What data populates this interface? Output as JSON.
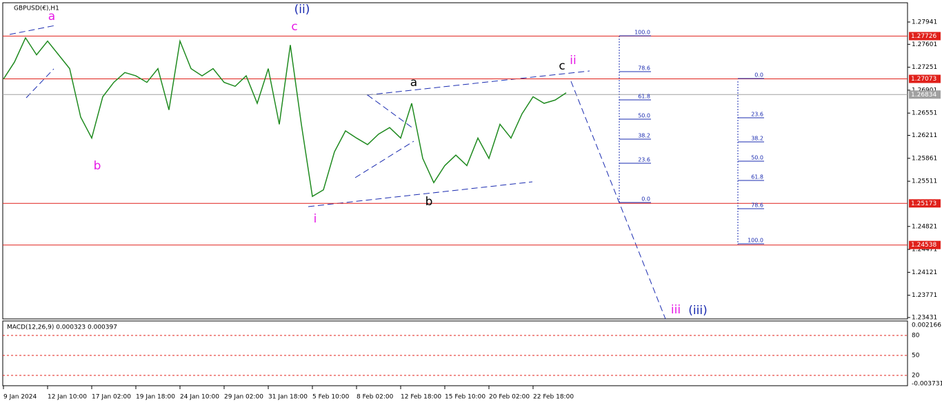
{
  "chart_data": {
    "type": "line",
    "title": "GBPUSD(€),H1",
    "categories": [
      "9 Jan 2024",
      null,
      null,
      null,
      "12 Jan 10:00",
      null,
      null,
      null,
      "17 Jan 02:00",
      null,
      null,
      null,
      "19 Jan 18:00",
      null,
      null,
      null,
      "24 Jan 10:00",
      null,
      null,
      null,
      "29 Jan 02:00",
      null,
      null,
      null,
      "31 Jan 18:00",
      null,
      null,
      null,
      "5 Feb 10:00",
      null,
      null,
      null,
      "8 Feb 02:00",
      null,
      null,
      null,
      "12 Feb 18:00",
      null,
      null,
      null,
      "15 Feb 10:00",
      null,
      null,
      null,
      "20 Feb 02:00",
      null,
      null,
      null,
      "22 Feb 18:00",
      null,
      null,
      null
    ],
    "series": [
      {
        "name": "GBPUSD",
        "color": "#1f8a1f",
        "values": [
          1.2707,
          1.2733,
          1.277,
          1.2744,
          1.2765,
          1.2744,
          1.2723,
          1.2649,
          1.2617,
          1.268,
          1.2702,
          1.2717,
          1.2712,
          1.2702,
          1.2723,
          1.266,
          1.2765,
          1.2723,
          1.2712,
          1.2723,
          1.2702,
          1.2696,
          1.2712,
          1.267,
          1.2723,
          1.2638,
          1.2759,
          1.2638,
          1.2528,
          1.2538,
          1.2596,
          1.2628,
          1.2617,
          1.2607,
          1.2623,
          1.2633,
          1.2617,
          1.267,
          1.2586,
          1.2549,
          1.2575,
          1.2591,
          1.2575,
          1.2617,
          1.2586,
          1.2638,
          1.2617,
          1.2654,
          1.268,
          1.267,
          1.2675,
          1.2686
        ]
      }
    ],
    "ylim": [
      1.2341,
      1.28235
    ],
    "yticks": [
      1.27941,
      1.27601,
      1.27251,
      1.26901,
      1.26551,
      1.26211,
      1.25861,
      1.25511,
      1.24821,
      1.24471,
      1.24121,
      1.23771,
      1.23431
    ],
    "hlines": [
      {
        "value": 1.27726,
        "color": "#e0201a"
      },
      {
        "value": 1.27073,
        "color": "#e0201a"
      },
      {
        "value": 1.26834,
        "color": "#a0a0a0"
      },
      {
        "value": 1.25173,
        "color": "#e0201a"
      },
      {
        "value": 1.24538,
        "color": "#e0201a"
      }
    ],
    "waves": [
      "(ii)",
      "a",
      "c",
      "b",
      "i",
      "a",
      "b",
      "c",
      "ii",
      "iii",
      "(iii)"
    ],
    "fib_left": [
      "100.0",
      "78.6",
      "61.8",
      "50.0",
      "38.2",
      "23.6",
      "0.0"
    ],
    "fib_right": [
      "0.0",
      "23.6",
      "38.2",
      "50.0",
      "61.8",
      "78.6",
      "100.0"
    ],
    "macd_title": "MACD(12,26,9) 0.000323 0.000397",
    "macd_axis": [
      "0.002166",
      "80",
      "50",
      "20",
      "-0.003731"
    ]
  }
}
